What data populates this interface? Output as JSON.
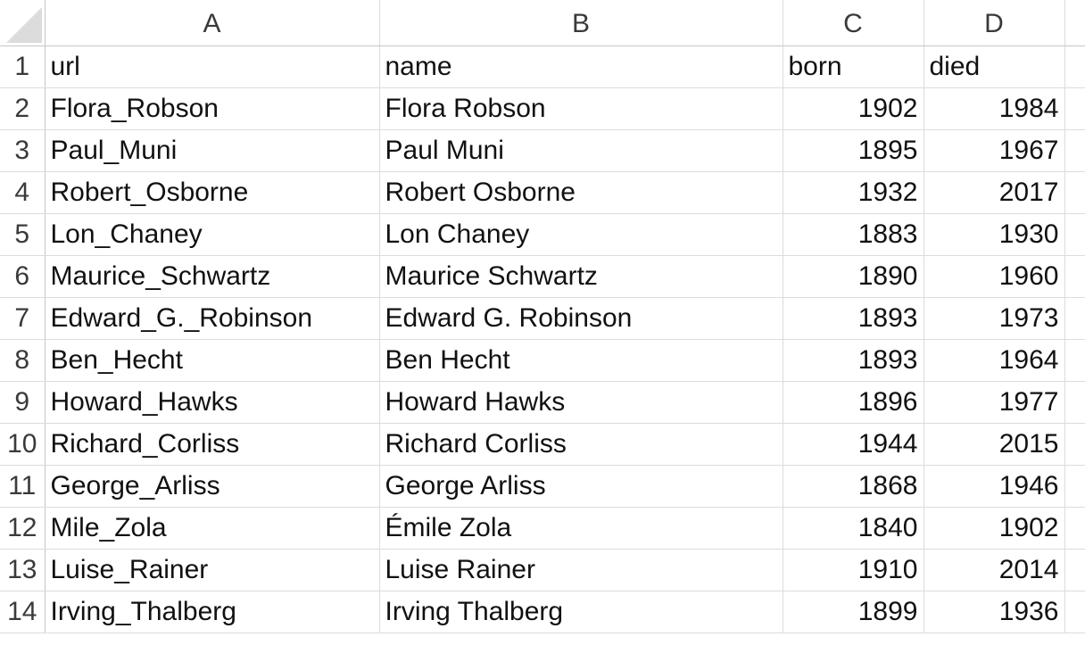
{
  "columns": [
    "A",
    "B",
    "C",
    "D"
  ],
  "row_numbers": [
    "1",
    "2",
    "3",
    "4",
    "5",
    "6",
    "7",
    "8",
    "9",
    "10",
    "11",
    "12",
    "13",
    "14"
  ],
  "rows": [
    {
      "url": "url",
      "name": "name",
      "born": "born",
      "died": "died"
    },
    {
      "url": "Flora_Robson",
      "name": "Flora Robson",
      "born": "1902",
      "died": "1984"
    },
    {
      "url": "Paul_Muni",
      "name": "Paul Muni",
      "born": "1895",
      "died": "1967"
    },
    {
      "url": "Robert_Osborne",
      "name": "Robert Osborne",
      "born": "1932",
      "died": "2017"
    },
    {
      "url": "Lon_Chaney",
      "name": "Lon Chaney",
      "born": "1883",
      "died": "1930"
    },
    {
      "url": "Maurice_Schwartz",
      "name": "Maurice Schwartz",
      "born": "1890",
      "died": "1960"
    },
    {
      "url": "Edward_G._Robinson",
      "name": "Edward G. Robinson",
      "born": "1893",
      "died": "1973"
    },
    {
      "url": "Ben_Hecht",
      "name": "Ben Hecht",
      "born": "1893",
      "died": "1964"
    },
    {
      "url": "Howard_Hawks",
      "name": "Howard Hawks",
      "born": "1896",
      "died": "1977"
    },
    {
      "url": "Richard_Corliss",
      "name": "Richard Corliss",
      "born": "1944",
      "died": "2015"
    },
    {
      "url": "George_Arliss",
      "name": "George Arliss",
      "born": "1868",
      "died": "1946"
    },
    {
      "url": "Mile_Zola",
      "name": "Émile Zola",
      "born": "1840",
      "died": "1902"
    },
    {
      "url": "Luise_Rainer",
      "name": "Luise Rainer",
      "born": "1910",
      "died": "2014"
    },
    {
      "url": "Irving_Thalberg",
      "name": "Irving Thalberg",
      "born": "1899",
      "died": "1936"
    }
  ],
  "icons": {
    "corner": "select-all-triangle-icon"
  },
  "colors": {
    "grid": "#dadcdf",
    "header_text": "#3a3a3a",
    "cell_text": "#111111"
  }
}
